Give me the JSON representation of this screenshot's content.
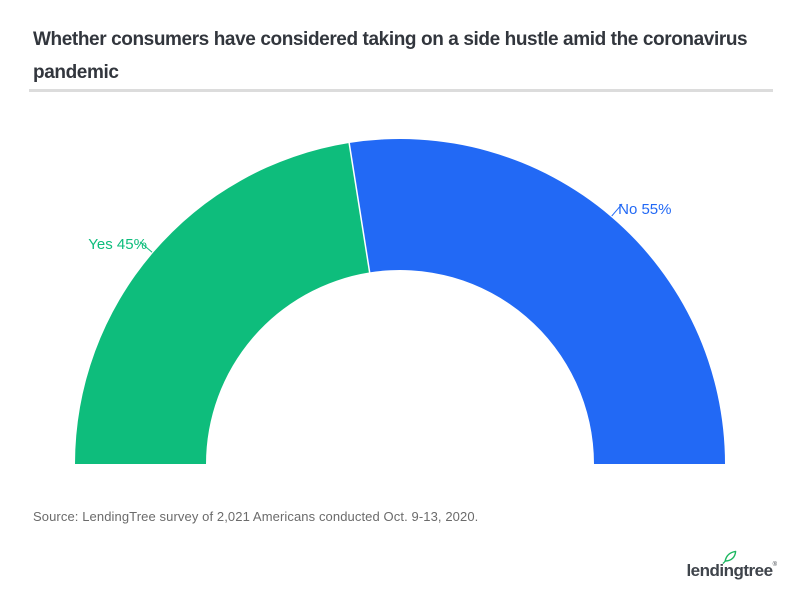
{
  "header": {
    "title": "Whether consumers have considered taking on a side hustle amid the coronavirus pandemic",
    "title_lines": [
      "Whether consumers have considered taking on a side hustle amid the coronavirus",
      "pandemic"
    ]
  },
  "chart_data": {
    "type": "pie",
    "variant": "half-donut",
    "title": "Whether consumers have considered taking on a side hustle amid the coronavirus pandemic",
    "categories": [
      "Yes",
      "No"
    ],
    "values": [
      45,
      55
    ],
    "unit": "%",
    "labels": [
      "Yes 45%",
      "No 55%"
    ],
    "colors": [
      "#0EBD7C",
      "#2269F5"
    ],
    "start_angle_deg": -90,
    "end_angle_deg": 90,
    "inner_radius_ratio": 0.597,
    "legend": "none",
    "data_label_format": "{category} {value}%"
  },
  "footer": {
    "source": "Source: LendingTree survey of 2,021 Americans conducted Oct. 9-13, 2020.",
    "logo_text": "lendingtree",
    "logo_trademark": "®"
  },
  "colors": {
    "green": "#0EBD7C",
    "blue": "#2269F5",
    "divider": "#DCDCDC",
    "title_text": "#32363D",
    "source_text": "#6B6B6B",
    "logo_text": "#3F444B",
    "logo_leaf": "#1CB760"
  }
}
